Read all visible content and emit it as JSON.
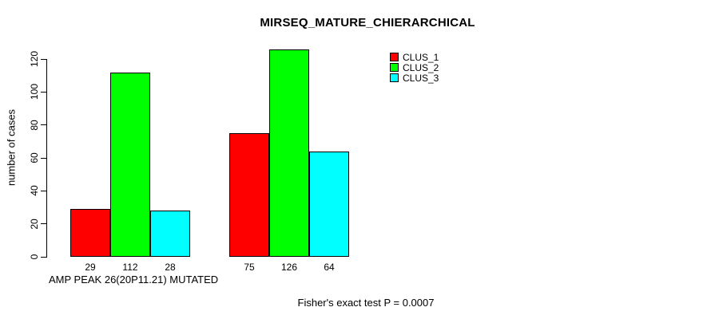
{
  "chart_data": {
    "type": "bar",
    "title": "MIRSEQ_MATURE_CHIERARCHICAL",
    "ylabel": "number of cases",
    "xlabel": "",
    "group_labels": [
      "AMP PEAK 26(20P11.21) MUTATED",
      ""
    ],
    "footer": "Fisher's exact test P = 0.0007",
    "ylim": [
      0,
      120
    ],
    "yticks": [
      0,
      20,
      40,
      60,
      80,
      100,
      120
    ],
    "grid": false,
    "legend_position": "top-right-inside",
    "bar_value_labels_shown": true,
    "series": [
      {
        "name": "CLUS_1",
        "color": "#ff0000",
        "values": [
          29,
          75
        ]
      },
      {
        "name": "CLUS_2",
        "color": "#00ff00",
        "values": [
          112,
          126
        ]
      },
      {
        "name": "CLUS_3",
        "color": "#00ffff",
        "values": [
          28,
          64
        ]
      }
    ],
    "colors": {
      "background": "#ffffff",
      "text": "#000000",
      "bar_border": "#000000",
      "axis": "#000000"
    }
  }
}
